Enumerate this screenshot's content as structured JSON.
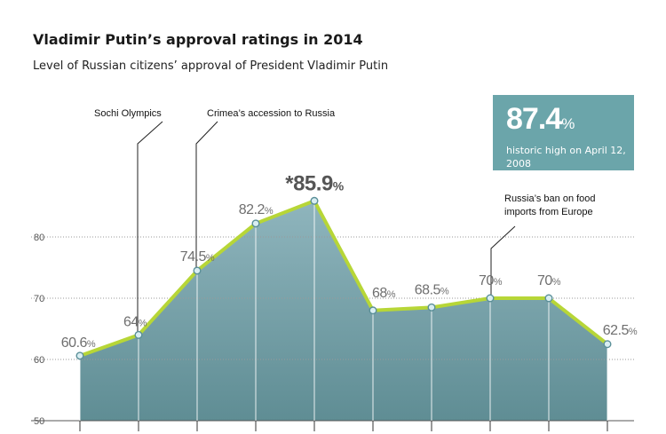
{
  "header": {
    "title": "Vladimir Putin’s approval ratings in 2014",
    "subtitle": "Level of Russian citizens’ approval of President Vladimir Putin"
  },
  "callout": {
    "value": "87.4",
    "unit": "%",
    "note": "historic high on April 12, 2008"
  },
  "colors": {
    "line": "#b7d637",
    "area_top": "#8fb5bd",
    "area_bottom": "#5f8d94",
    "callout_bg": "#6ba5aa",
    "point_fill": "#d9eef2",
    "point_stroke": "#5a8f98"
  },
  "chart_data": {
    "type": "area",
    "title": "Vladimir Putin’s approval ratings in 2014",
    "xlabel": "",
    "ylabel": "",
    "ylim": [
      50,
      87
    ],
    "yticks": [
      50,
      60,
      70,
      80
    ],
    "grid": true,
    "series": [
      {
        "values": [
          60.6,
          64,
          74.5,
          82.2,
          85.9,
          68,
          68.5,
          70,
          70,
          62.5
        ],
        "labels": [
          "60.6",
          "64",
          "74.5",
          "82.2",
          "*85.9",
          "68",
          "68.5",
          "70",
          "70",
          "62.5"
        ],
        "unit": "%"
      }
    ],
    "annotations": [
      {
        "text": "Sochi Olympics",
        "point_index": 1
      },
      {
        "text": "Crimea’s accession to Russia",
        "point_index": 2
      },
      {
        "text": "Russia’s ban on food imports from Europe",
        "point_index": 7
      }
    ]
  }
}
